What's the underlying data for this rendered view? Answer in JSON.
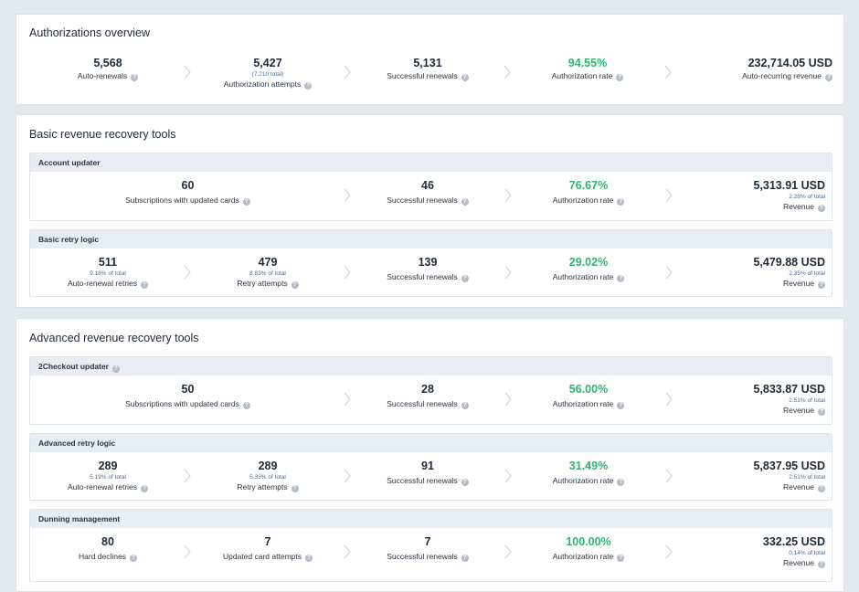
{
  "overview": {
    "title": "Authorizations overview",
    "metrics": [
      {
        "value": "5,568",
        "sub": "",
        "label": "Auto-renewals"
      },
      {
        "value": "5,427",
        "sub": "(7,210 total)",
        "label": "Authorization attempts"
      },
      {
        "value": "5,131",
        "sub": "",
        "label": "Successful renewals"
      },
      {
        "value": "94.55%",
        "sub": "",
        "label": "Authorization rate"
      },
      {
        "value": "232,714.05 USD",
        "sub": "",
        "label": "Auto-recurring revenue"
      }
    ]
  },
  "basic": {
    "title": "Basic revenue recovery tools",
    "account_updater": {
      "title": "Account updater",
      "m1": {
        "value": "60",
        "label": "Subscriptions with updated cards"
      },
      "m2": {
        "value": "46",
        "label": "Successful renewals"
      },
      "m3": {
        "value": "76.67%",
        "label": "Authorization rate"
      },
      "m4": {
        "value": "5,313.91 USD",
        "sub": "2.28% of total",
        "label": "Revenue"
      }
    },
    "retry_logic": {
      "title": "Basic retry logic",
      "m1": {
        "value": "511",
        "sub": "9.18% of total",
        "label": "Auto-renewal retries"
      },
      "m2": {
        "value": "479",
        "sub": "8.83% of total",
        "label": "Retry attempts"
      },
      "m3": {
        "value": "139",
        "label": "Successful renewals"
      },
      "m4": {
        "value": "29.02%",
        "label": "Authorization rate"
      },
      "m5": {
        "value": "5,479.88 USD",
        "sub": "2.35% of total",
        "label": "Revenue"
      }
    }
  },
  "advanced": {
    "title": "Advanced revenue recovery tools",
    "updater": {
      "title": "2Checkout updater",
      "m1": {
        "value": "50",
        "label": "Subscriptions with updated cards"
      },
      "m2": {
        "value": "28",
        "label": "Successful renewals"
      },
      "m3": {
        "value": "56.00%",
        "label": "Authorization rate"
      },
      "m4": {
        "value": "5,833.87 USD",
        "sub": "2.51% of total",
        "label": "Revenue"
      }
    },
    "retry_logic": {
      "title": "Advanced retry logic",
      "m1": {
        "value": "289",
        "sub": "5.19% of total",
        "label": "Auto-renewal retries"
      },
      "m2": {
        "value": "289",
        "sub": "5.33% of total",
        "label": "Retry attempts"
      },
      "m3": {
        "value": "91",
        "label": "Successful renewals"
      },
      "m4": {
        "value": "31.49%",
        "label": "Authorization rate"
      },
      "m5": {
        "value": "5,837.95 USD",
        "sub": "2.51% of total",
        "label": "Revenue"
      }
    },
    "dunning": {
      "title": "Dunning management",
      "m1": {
        "value": "80",
        "label": "Hard declines"
      },
      "m2": {
        "value": "7",
        "label": "Updated card attempts"
      },
      "m3": {
        "value": "7",
        "label": "Successful renewals"
      },
      "m4": {
        "value": "100.00%",
        "label": "Authorization rate"
      },
      "m5": {
        "value": "332.25 USD",
        "sub": "0.14% of total",
        "label": "Revenue"
      }
    }
  },
  "colors": {
    "accent_green": "#2bb673",
    "sub_text": "#4a6a94"
  },
  "icons": {
    "help": "help-circle-icon",
    "step": "chevron-right-icon"
  }
}
